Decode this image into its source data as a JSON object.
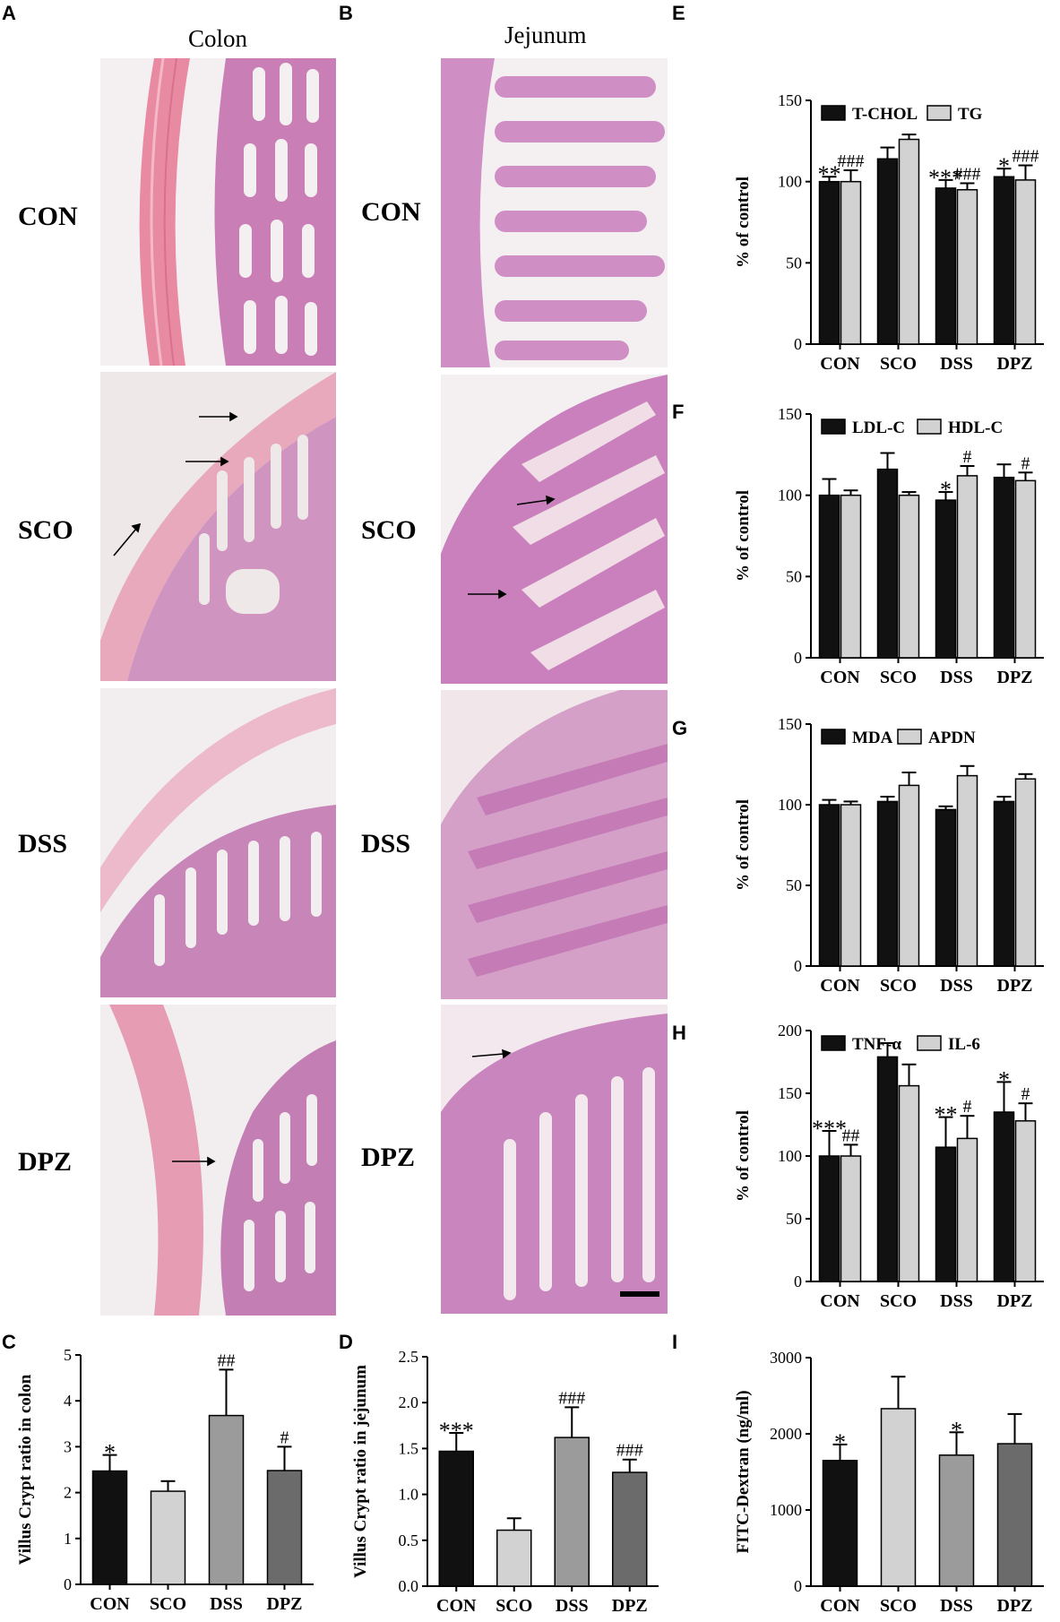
{
  "panel_labels": {
    "A": "A",
    "B": "B",
    "C": "C",
    "D": "D",
    "E": "E",
    "F": "F",
    "G": "G",
    "H": "H",
    "I": "I"
  },
  "histology": {
    "colon_title": "Colon",
    "jejunum_title": "Jejunum",
    "row_labels": [
      "CON",
      "SCO",
      "DSS",
      "DPZ"
    ],
    "colors": {
      "tissue": "#c76ab0",
      "nuclei": "#6a3e8e",
      "background": "#f2eef0",
      "muscle": "#e7899f",
      "arrow": "#000000"
    }
  },
  "chart_data": [
    {
      "id": "C",
      "type": "bar",
      "categories": [
        "CON",
        "SCO",
        "DSS",
        "DPZ"
      ],
      "series": [
        {
          "values": [
            2.47,
            2.03,
            3.68,
            2.48
          ],
          "errors": [
            0.35,
            0.22,
            1.0,
            0.52
          ],
          "colors": [
            "#111111",
            "#d2d2d2",
            "#9b9b9b",
            "#6b6b6b"
          ]
        }
      ],
      "ylabel": "Villus Crypt ratio in colon",
      "ylim": [
        0,
        5
      ],
      "yticks": [
        "0",
        "1",
        "2",
        "3",
        "4",
        "5"
      ],
      "annotations": [
        "*",
        "",
        "##",
        "#"
      ]
    },
    {
      "id": "D",
      "type": "bar",
      "categories": [
        "CON",
        "SCO",
        "DSS",
        "DPZ"
      ],
      "series": [
        {
          "values": [
            1.47,
            0.61,
            1.62,
            1.24
          ],
          "errors": [
            0.2,
            0.13,
            0.33,
            0.14
          ],
          "colors": [
            "#111111",
            "#d2d2d2",
            "#9b9b9b",
            "#6b6b6b"
          ]
        }
      ],
      "ylabel": "Villus Crypt ratio in jejunum",
      "ylim": [
        0,
        2.5
      ],
      "yticks": [
        "0.0",
        "0.5",
        "1.0",
        "1.5",
        "2.0",
        "2.5"
      ],
      "annotations": [
        "***",
        "",
        "###",
        "###"
      ]
    },
    {
      "id": "E",
      "type": "bar",
      "categories": [
        "CON",
        "SCO",
        "DSS",
        "DPZ"
      ],
      "series": [
        {
          "name": "T-CHOL",
          "color": "#111111",
          "values": [
            100,
            114,
            96,
            103
          ],
          "errors": [
            3,
            7,
            5,
            5
          ],
          "annotations": [
            "**",
            "",
            "***",
            "*"
          ]
        },
        {
          "name": "TG",
          "color": "#d2d2d2",
          "values": [
            100,
            126,
            95,
            101
          ],
          "errors": [
            7,
            3,
            4,
            9
          ],
          "annotations": [
            "###",
            "",
            "###",
            "###"
          ]
        }
      ],
      "ylabel": "% of control",
      "ylim": [
        0,
        150
      ],
      "yticks": [
        "0",
        "50",
        "100",
        "150"
      ]
    },
    {
      "id": "F",
      "type": "bar",
      "categories": [
        "CON",
        "SCO",
        "DSS",
        "DPZ"
      ],
      "series": [
        {
          "name": "LDL-C",
          "color": "#111111",
          "values": [
            100,
            116,
            97,
            111
          ],
          "errors": [
            10,
            10,
            5,
            8
          ],
          "annotations": [
            "",
            "",
            "*",
            ""
          ]
        },
        {
          "name": "HDL-C",
          "color": "#d2d2d2",
          "values": [
            100,
            100,
            112,
            109
          ],
          "errors": [
            3,
            2,
            6,
            5
          ],
          "annotations": [
            "",
            "",
            "#",
            "#"
          ]
        }
      ],
      "ylabel": "% of control",
      "ylim": [
        0,
        150
      ],
      "yticks": [
        "0",
        "50",
        "100",
        "150"
      ]
    },
    {
      "id": "G",
      "type": "bar",
      "categories": [
        "CON",
        "SCO",
        "DSS",
        "DPZ"
      ],
      "series": [
        {
          "name": "MDA",
          "color": "#111111",
          "values": [
            100,
            102,
            97,
            102
          ],
          "errors": [
            3,
            3,
            2,
            3
          ],
          "annotations": [
            "",
            "",
            "",
            ""
          ]
        },
        {
          "name": "APDN",
          "color": "#d2d2d2",
          "values": [
            100,
            112,
            118,
            116
          ],
          "errors": [
            2,
            8,
            6,
            3
          ],
          "annotations": [
            "",
            "",
            "",
            ""
          ]
        }
      ],
      "ylabel": "% of control",
      "ylim": [
        0,
        150
      ],
      "yticks": [
        "0",
        "50",
        "100",
        "150"
      ]
    },
    {
      "id": "H",
      "type": "bar",
      "categories": [
        "CON",
        "SCO",
        "DSS",
        "DPZ"
      ],
      "series": [
        {
          "name": "TNF-α",
          "color": "#111111",
          "values": [
            100,
            179,
            107,
            135
          ],
          "errors": [
            20,
            11,
            24,
            24
          ],
          "annotations": [
            "***",
            "",
            "**",
            "*"
          ]
        },
        {
          "name": "IL-6",
          "color": "#d2d2d2",
          "values": [
            100,
            156,
            114,
            128
          ],
          "errors": [
            9,
            17,
            18,
            14
          ],
          "annotations": [
            "##",
            "",
            "#",
            "#"
          ]
        }
      ],
      "ylabel": "% of control",
      "ylim": [
        0,
        200
      ],
      "yticks": [
        "0",
        "50",
        "100",
        "150",
        "200"
      ]
    },
    {
      "id": "I",
      "type": "bar",
      "categories": [
        "CON",
        "SCO",
        "DSS",
        "DPZ"
      ],
      "series": [
        {
          "values": [
            1650,
            2330,
            1720,
            1870
          ],
          "errors": [
            210,
            420,
            300,
            390
          ],
          "colors": [
            "#111111",
            "#d2d2d2",
            "#9b9b9b",
            "#6b6b6b"
          ]
        }
      ],
      "ylabel": "FITC-Dextran (ng/ml)",
      "ylim": [
        0,
        3000
      ],
      "yticks": [
        "0",
        "1000",
        "2000",
        "3000"
      ],
      "annotations": [
        "*",
        "",
        "*",
        ""
      ]
    }
  ]
}
